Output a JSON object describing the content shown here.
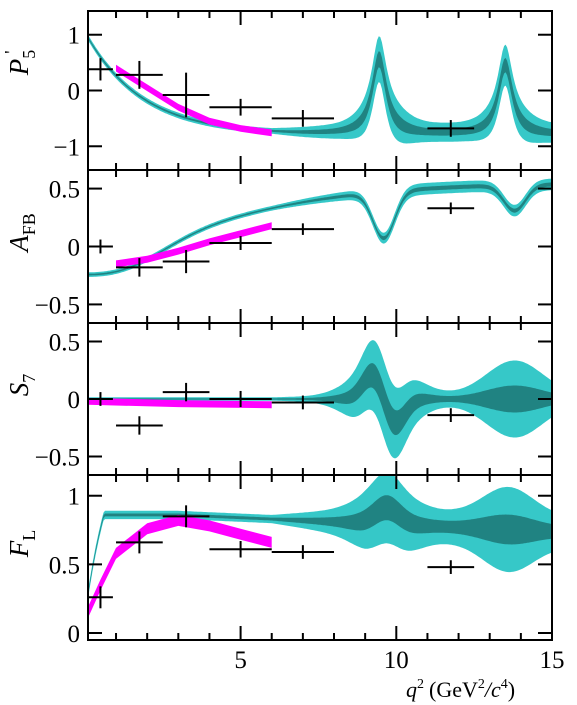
{
  "colors": {
    "frame": "#000000",
    "band_wide": "#36c8c8",
    "band_narrow": "#0f4a48",
    "band_lowq2": "#ff00ff",
    "data_points": "#000000"
  },
  "xaxis": {
    "label_main": "q",
    "label_sup": "2",
    "label_units": "(GeV",
    "label_units_sup": "2",
    "label_units_tail": "/c",
    "label_units_sup2": "4",
    "label_close": ")",
    "ticks": [
      5,
      10,
      15
    ],
    "tick_labels": [
      "5",
      "10",
      "15"
    ]
  },
  "chart_data": [
    {
      "type": "scatter",
      "panel": "P5prime",
      "ylabel": "P",
      "ylabel_sub": "5",
      "ylabel_prime": "'",
      "xlim": [
        0.1,
        15
      ],
      "ylim": [
        -1.3,
        1.3
      ],
      "yticks": [
        1,
        0,
        -1
      ],
      "ytick_labels": [
        "1",
        "0",
        "−1"
      ],
      "x": [
        0.5,
        1.75,
        3.25,
        5.0,
        7.0,
        11.75
      ],
      "xerr": [
        0.4,
        0.75,
        0.75,
        1.0,
        1.0,
        0.75
      ],
      "y": [
        0.38,
        0.28,
        -0.08,
        -0.3,
        -0.5,
        -0.68
      ],
      "yerr": [
        0.2,
        0.25,
        0.4,
        0.15,
        0.15,
        0.15
      ],
      "low_q2_band_center": [
        [
          1.0,
          0.4
        ],
        [
          2.0,
          0.05
        ],
        [
          3.0,
          -0.3
        ],
        [
          4.0,
          -0.55
        ],
        [
          5.0,
          -0.68
        ],
        [
          6.0,
          -0.76
        ]
      ],
      "low_q2_band_halfwidth": 0.06,
      "resonance_q2": [
        9.6,
        13.6
      ]
    },
    {
      "type": "scatter",
      "panel": "AFB",
      "ylabel": "A",
      "ylabel_sub": "FB",
      "xlim": [
        0.1,
        15
      ],
      "ylim": [
        -0.6,
        0.6
      ],
      "yticks": [
        0.5,
        0,
        -0.5
      ],
      "ytick_labels": [
        "0.5",
        "0",
        "−0.5"
      ],
      "x": [
        0.5,
        1.75,
        3.25,
        5.0,
        7.0,
        11.75
      ],
      "xerr": [
        0.4,
        0.75,
        0.75,
        1.0,
        1.0,
        0.75
      ],
      "y": [
        0.0,
        -0.18,
        -0.13,
        0.03,
        0.15,
        0.33
      ],
      "yerr": [
        0.06,
        0.08,
        0.1,
        0.06,
        0.05,
        0.05
      ],
      "low_q2_band_center": [
        [
          1.0,
          -0.15
        ],
        [
          2.0,
          -0.11
        ],
        [
          3.0,
          -0.04
        ],
        [
          4.0,
          0.04
        ],
        [
          5.0,
          0.11
        ],
        [
          6.0,
          0.18
        ]
      ],
      "low_q2_band_halfwidth": 0.03,
      "resonance_q2": [
        9.6,
        13.6
      ]
    },
    {
      "type": "scatter",
      "panel": "S7",
      "ylabel": "S",
      "ylabel_sub": "7",
      "xlim": [
        0.1,
        15
      ],
      "ylim": [
        -0.6,
        0.6
      ],
      "yticks": [
        0.5,
        0,
        -0.5
      ],
      "ytick_labels": [
        "0.5",
        "0",
        "−0.5"
      ],
      "x": [
        0.5,
        1.75,
        3.25,
        5.0,
        7.0,
        11.75
      ],
      "xerr": [
        0.4,
        0.75,
        0.75,
        1.0,
        1.0,
        0.75
      ],
      "y": [
        0.0,
        -0.23,
        0.06,
        0.0,
        -0.03,
        -0.14
      ],
      "yerr": [
        0.06,
        0.08,
        0.08,
        0.07,
        0.06,
        0.06
      ],
      "low_q2_band_center": [
        [
          0.1,
          -0.02
        ],
        [
          3.0,
          -0.04
        ],
        [
          6.0,
          -0.05
        ]
      ],
      "low_q2_band_halfwidth": 0.03,
      "resonance_q2": [
        9.6,
        13.6
      ]
    },
    {
      "type": "scatter",
      "panel": "FL",
      "ylabel": "F",
      "ylabel_sub": "L",
      "xlim": [
        0.1,
        15
      ],
      "ylim": [
        0,
        1.1
      ],
      "yticks": [
        1,
        0.5,
        0
      ],
      "ytick_labels": [
        "1",
        "0.5",
        "0"
      ],
      "x": [
        0.5,
        1.75,
        3.25,
        5.0,
        7.0,
        11.75
      ],
      "xerr": [
        0.4,
        0.75,
        0.75,
        1.0,
        1.0,
        0.75
      ],
      "y": [
        0.26,
        0.66,
        0.85,
        0.61,
        0.59,
        0.48
      ],
      "yerr": [
        0.08,
        0.08,
        0.08,
        0.06,
        0.05,
        0.05
      ],
      "low_q2_band_center": [
        [
          0.1,
          0.15
        ],
        [
          0.5,
          0.35
        ],
        [
          1.0,
          0.58
        ],
        [
          2.0,
          0.76
        ],
        [
          3.0,
          0.82
        ],
        [
          4.0,
          0.78
        ],
        [
          5.0,
          0.72
        ],
        [
          6.0,
          0.66
        ]
      ],
      "low_q2_band_halfwidth": 0.04,
      "resonance_q2": [
        9.6,
        13.6
      ]
    }
  ]
}
